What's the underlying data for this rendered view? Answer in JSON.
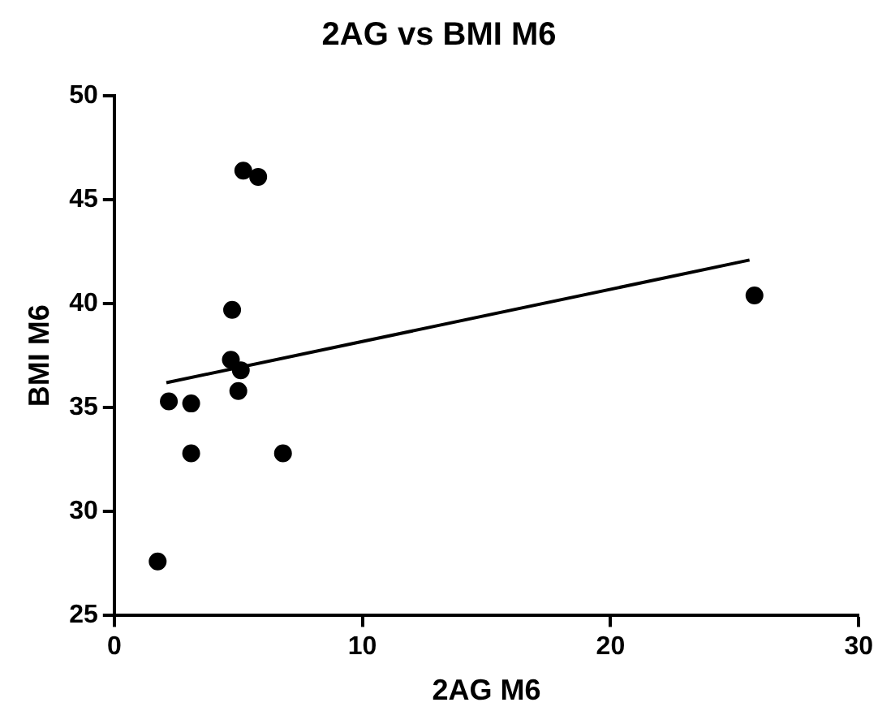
{
  "chart_data": {
    "type": "scatter",
    "title": "2AG vs BMI M6",
    "xlabel": "2AG M6",
    "ylabel": "BMI M6",
    "xlim": [
      0,
      30
    ],
    "xticks": [
      0,
      10,
      20,
      30
    ],
    "ylim": [
      25,
      50
    ],
    "yticks": [
      25,
      30,
      35,
      40,
      45,
      50
    ],
    "grid": false,
    "legend": false,
    "series": [
      {
        "type": "scatter",
        "marker": "circle",
        "color": "#000000",
        "x": [
          1.75,
          2.2,
          3.1,
          3.1,
          4.7,
          4.75,
          5.0,
          5.1,
          5.2,
          5.8,
          6.8,
          25.8
        ],
        "values": [
          27.6,
          35.3,
          35.2,
          32.8,
          37.3,
          39.7,
          35.8,
          36.8,
          46.4,
          46.1,
          32.8,
          40.4
        ]
      },
      {
        "type": "line",
        "color": "#000000",
        "x": [
          2.1,
          25.6
        ],
        "values": [
          36.2,
          42.1
        ]
      }
    ]
  }
}
